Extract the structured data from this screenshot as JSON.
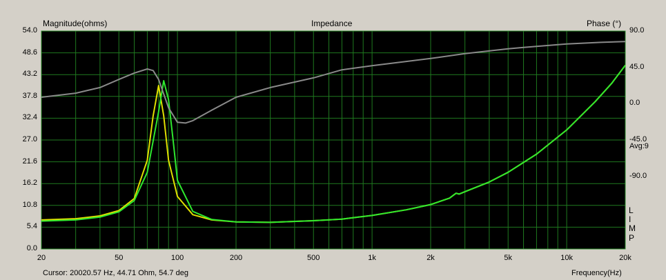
{
  "chart_data": {
    "type": "line",
    "title": "Impedance",
    "ylabel_left": "Magnitude(ohms)",
    "ylabel_right": "Phase (°)",
    "xlabel": "Frequency(Hz)",
    "x_scale": "log",
    "xlim": [
      20,
      20000
    ],
    "ylim_left": [
      0,
      54
    ],
    "ylim_right": [
      -180,
      90
    ],
    "y_ticks_left": [
      "54.0",
      "48.6",
      "43.2",
      "37.8",
      "32.4",
      "27.0",
      "21.6",
      "16.2",
      "10.8",
      "5.4",
      "0.0"
    ],
    "y_ticks_right": [
      "90.0",
      "45.0",
      "0.0",
      "-45.0",
      "-90.0"
    ],
    "x_tick_labels": [
      {
        "v": 20,
        "label": "20"
      },
      {
        "v": 50,
        "label": "50"
      },
      {
        "v": 100,
        "label": "100"
      },
      {
        "v": 200,
        "label": "200"
      },
      {
        "v": 500,
        "label": "500"
      },
      {
        "v": 1000,
        "label": "1k"
      },
      {
        "v": 2000,
        "label": "2k"
      },
      {
        "v": 5000,
        "label": "5k"
      },
      {
        "v": 10000,
        "label": "10k"
      },
      {
        "v": 20000,
        "label": "20k"
      }
    ],
    "series": [
      {
        "color": "#e0e000",
        "axis": "left",
        "x": [
          20,
          30,
          40,
          50,
          60,
          70,
          75,
          80,
          85,
          90,
          100,
          120,
          150,
          200,
          300,
          500,
          700,
          1000,
          1500,
          2000,
          2500,
          2700,
          2800,
          3000,
          4000,
          5000,
          7000,
          10000,
          14000,
          17000,
          20000
        ],
        "y": [
          7.2,
          7.5,
          8.2,
          9.5,
          12.5,
          22,
          33,
          40.5,
          33,
          22,
          13,
          8.5,
          7.2,
          6.7,
          6.6,
          7.0,
          7.4,
          8.3,
          9.7,
          11,
          12.6,
          13.8,
          13.6,
          14.2,
          16.6,
          19,
          23.5,
          29.5,
          36.5,
          41,
          45.5
        ]
      },
      {
        "color": "#2ee82e",
        "axis": "left",
        "x": [
          20,
          30,
          40,
          50,
          60,
          70,
          80,
          85,
          90,
          95,
          100,
          120,
          150,
          200,
          300,
          500,
          700,
          1000,
          1500,
          2000,
          2500,
          2700,
          2800,
          3000,
          4000,
          5000,
          7000,
          10000,
          14000,
          17000,
          20000
        ],
        "y": [
          6.9,
          7.2,
          7.9,
          9.2,
          12,
          19,
          34,
          41.7,
          37,
          27,
          17,
          9.3,
          7.3,
          6.7,
          6.6,
          7.0,
          7.4,
          8.3,
          9.7,
          11,
          12.6,
          13.8,
          13.6,
          14.2,
          16.6,
          19,
          23.5,
          29.5,
          36.5,
          41,
          45.5
        ]
      },
      {
        "color": "#8a8a8a",
        "axis": "right",
        "x": [
          20,
          30,
          40,
          50,
          60,
          70,
          75,
          80,
          90,
          100,
          110,
          120,
          150,
          200,
          300,
          500,
          700,
          1000,
          2000,
          3000,
          5000,
          7000,
          10000,
          15000,
          20000
        ],
        "y": [
          8,
          13,
          20,
          30,
          38,
          43,
          41,
          30,
          -5,
          -23,
          -24,
          -21,
          -8,
          8,
          20,
          32,
          42,
          47,
          56,
          62,
          68,
          71,
          74,
          76,
          77
        ]
      }
    ],
    "annotations": [
      "Avg:9",
      "L",
      "I",
      "M",
      "P"
    ],
    "cursor_readout": "Cursor: 20020.57 Hz, 44.71 Ohm, 54.7 deg"
  }
}
